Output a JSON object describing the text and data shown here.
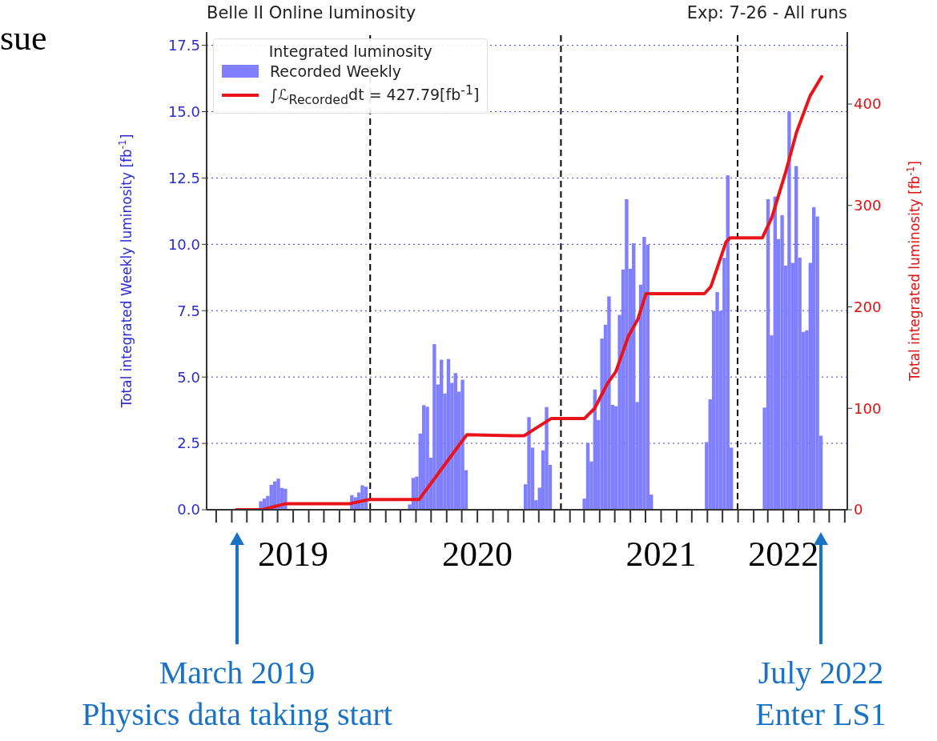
{
  "chart_data": {
    "type": "bar",
    "title": "Belle II Online luminosity",
    "subtitle": "Exp: 7-26 - All runs",
    "ylabel": "Total integrated Weekly luminosity [fb$^{-1}$]",
    "y2label": "Total integrated luminosity [fb$^{-1}$]",
    "legend_title": "Integrated luminosity",
    "legend": "top left",
    "grid": "y",
    "xlim": [
      "2019-02-10",
      "2022-08-06"
    ],
    "xticks": [
      {
        "value": "2019-03-01",
        "label": null
      },
      {
        "value": "2019-04-01",
        "label": null
      },
      {
        "value": "2019-05-01",
        "label": null
      },
      {
        "value": "2019-06-01",
        "label": null
      },
      {
        "value": "2019-07-01",
        "label": null
      },
      {
        "value": "2019-08-01",
        "label": "2019"
      },
      {
        "value": "2019-09-01",
        "label": null
      },
      {
        "value": "2019-10-01",
        "label": null
      },
      {
        "value": "2019-11-01",
        "label": null
      },
      {
        "value": "2019-12-01",
        "label": null
      },
      {
        "value": "2020-01-01",
        "label": null
      },
      {
        "value": "2020-02-01",
        "label": null
      },
      {
        "value": "2020-03-01",
        "label": null
      },
      {
        "value": "2020-04-01",
        "label": null
      },
      {
        "value": "2020-05-01",
        "label": null
      },
      {
        "value": "2020-06-01",
        "label": null
      },
      {
        "value": "2020-07-01",
        "label": null
      },
      {
        "value": "2020-08-01",
        "label": "2020"
      },
      {
        "value": "2020-09-01",
        "label": null
      },
      {
        "value": "2020-10-01",
        "label": null
      },
      {
        "value": "2020-11-01",
        "label": null
      },
      {
        "value": "2020-12-01",
        "label": null
      },
      {
        "value": "2021-01-01",
        "label": null
      },
      {
        "value": "2021-02-01",
        "label": null
      },
      {
        "value": "2021-03-01",
        "label": null
      },
      {
        "value": "2021-04-01",
        "label": null
      },
      {
        "value": "2021-05-01",
        "label": null
      },
      {
        "value": "2021-06-01",
        "label": null
      },
      {
        "value": "2021-07-01",
        "label": null
      },
      {
        "value": "2021-08-01",
        "label": "2021"
      },
      {
        "value": "2021-09-01",
        "label": null
      },
      {
        "value": "2021-10-01",
        "label": null
      },
      {
        "value": "2021-11-01",
        "label": null
      },
      {
        "value": "2021-12-01",
        "label": null
      },
      {
        "value": "2022-01-01",
        "label": null
      },
      {
        "value": "2022-02-01",
        "label": null
      },
      {
        "value": "2022-03-01",
        "label": null
      },
      {
        "value": "2022-04-01",
        "label": "2022"
      },
      {
        "value": "2022-05-01",
        "label": null
      },
      {
        "value": "2022-06-01",
        "label": null
      },
      {
        "value": "2022-07-01",
        "label": null
      },
      {
        "value": "2022-08-01",
        "label": null
      }
    ],
    "ylim": [
      0,
      18
    ],
    "yticks": [
      {
        "value": 0,
        "label": "0.0"
      },
      {
        "value": 2.5,
        "label": "2.5"
      },
      {
        "value": 5,
        "label": "5.0"
      },
      {
        "value": 7.5,
        "label": "7.5"
      },
      {
        "value": 10,
        "label": "10.0"
      },
      {
        "value": 12.5,
        "label": "12.5"
      },
      {
        "value": 15,
        "label": "15.0"
      },
      {
        "value": 17.5,
        "label": "17.5"
      }
    ],
    "y2lim": [
      0,
      471
    ],
    "y2ticks": [
      0,
      100,
      200,
      300,
      400
    ],
    "ref_lines": [
      {
        "axis": "x",
        "value": "2020-01-01",
        "color": "#000000",
        "line_style": "dashed"
      },
      {
        "axis": "x",
        "value": "2021-01-14",
        "color": "#000000",
        "line_style": "dashed"
      },
      {
        "axis": "x",
        "value": "2021-12-31",
        "color": "#000000",
        "line_style": "dashed"
      }
    ],
    "series": [
      {
        "name": "Recorded Weekly",
        "color": "#8080ff",
        "x": [
          "2019-05-25",
          "2019-06-01",
          "2019-06-08",
          "2019-06-15",
          "2019-06-22",
          "2019-06-29",
          "2019-07-06",
          "2019-07-13",
          "2019-11-22",
          "2019-11-29",
          "2019-12-06",
          "2019-12-13",
          "2019-12-20",
          "2020-03-16",
          "2020-03-23",
          "2020-03-30",
          "2020-04-06",
          "2020-04-13",
          "2020-04-20",
          "2020-04-27",
          "2020-05-04",
          "2020-05-11",
          "2020-05-18",
          "2020-05-25",
          "2020-06-01",
          "2020-06-08",
          "2020-06-15",
          "2020-06-22",
          "2020-06-29",
          "2020-07-06",
          "2020-11-01",
          "2020-11-08",
          "2020-11-15",
          "2020-11-22",
          "2020-11-29",
          "2020-12-06",
          "2020-12-13",
          "2020-12-20",
          "2021-02-26",
          "2021-03-05",
          "2021-03-12",
          "2021-03-19",
          "2021-03-26",
          "2021-04-02",
          "2021-04-09",
          "2021-04-16",
          "2021-04-23",
          "2021-04-30",
          "2021-05-07",
          "2021-05-14",
          "2021-05-21",
          "2021-05-28",
          "2021-06-04",
          "2021-06-11",
          "2021-06-18",
          "2021-06-25",
          "2021-07-02",
          "2021-07-09",
          "2021-10-27",
          "2021-11-03",
          "2021-11-10",
          "2021-11-17",
          "2021-11-24",
          "2021-12-01",
          "2021-12-08",
          "2021-12-15",
          "2022-02-19",
          "2022-02-26",
          "2022-03-05",
          "2022-03-12",
          "2022-03-19",
          "2022-03-26",
          "2022-04-02",
          "2022-04-09",
          "2022-04-16",
          "2022-04-23",
          "2022-04-30",
          "2022-05-07",
          "2022-05-14",
          "2022-05-21",
          "2022-05-28",
          "2022-06-04",
          "2022-06-11"
        ],
        "values": [
          0.32,
          0.42,
          0.52,
          0.94,
          1.07,
          1.17,
          0.82,
          0.79,
          0.55,
          0.47,
          0.65,
          0.92,
          0.87,
          0.2,
          1.2,
          1.25,
          2.87,
          3.94,
          3.88,
          1.96,
          6.24,
          4.72,
          5.65,
          4.38,
          5.68,
          4.78,
          5.15,
          4.45,
          4.9,
          1.49,
          0.96,
          3.49,
          2.34,
          0.36,
          0.83,
          2.24,
          3.87,
          1.69,
          0.42,
          2.52,
          1.82,
          4.53,
          3.38,
          6.45,
          6.97,
          8.04,
          3.95,
          3.9,
          7.34,
          9.05,
          11.7,
          9.08,
          10.04,
          4.06,
          8.48,
          10.28,
          9.99,
          0.57,
          2.55,
          4.16,
          7.49,
          8.2,
          7.49,
          9.49,
          12.6,
          2.34,
          3.85,
          11.7,
          6.57,
          11.8,
          10.2,
          11.1,
          9.2,
          15.0,
          9.3,
          12.95,
          9.5,
          6.7,
          6.76,
          9.3,
          11.4,
          11.05,
          2.79
        ]
      },
      {
        "name": "∫ℒ$_{Recorded}$dt = 427.79[fb$^{-1}$]",
        "type": "line",
        "axis": "y2",
        "color": "#e8141a",
        "x": [
          "2019-04-10",
          "2019-05-31",
          "2019-07-18",
          "2019-11-22",
          "2019-12-30",
          "2020-04-07",
          "2020-07-11",
          "2020-10-10",
          "2020-11-02",
          "2020-11-24",
          "2020-12-26",
          "2021-03-02",
          "2021-03-22",
          "2021-04-17",
          "2021-05-03",
          "2021-05-28",
          "2021-06-16",
          "2021-07-02",
          "2021-10-26",
          "2021-11-08",
          "2021-12-08",
          "2021-12-16",
          "2022-02-18",
          "2022-03-09",
          "2022-04-05",
          "2022-04-27",
          "2022-05-24",
          "2022-06-16"
        ],
        "values": [
          0,
          0,
          6,
          6,
          10,
          10,
          74,
          73,
          73,
          80,
          90,
          90,
          100,
          125,
          136,
          171,
          188,
          213,
          213,
          220,
          264,
          268,
          268,
          288,
          332,
          372,
          408,
          427
        ]
      }
    ],
    "annotations": [
      "sue",
      "March 2019\nPhysics data taking start",
      "July 2022\nEnter LS1"
    ]
  }
}
